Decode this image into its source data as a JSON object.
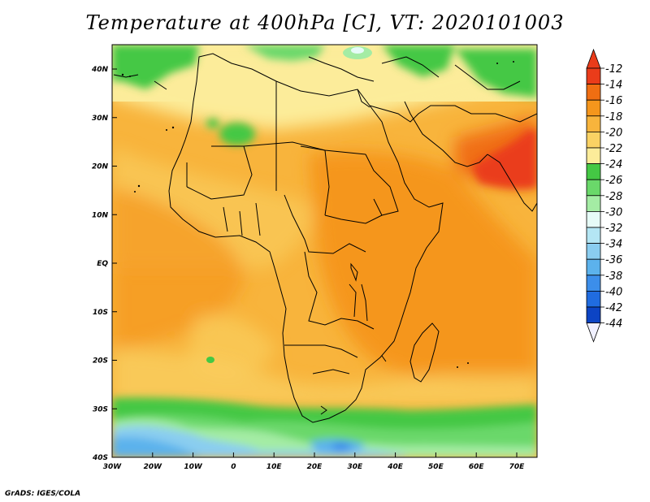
{
  "title": "Temperature at 400hPa [C], VT: 2020101003",
  "credit": "GrADS: IGES/COLA",
  "map": {
    "lon_ticks": [
      "30W",
      "20W",
      "10W",
      "0",
      "10E",
      "20E",
      "30E",
      "40E",
      "50E",
      "60E",
      "70E"
    ],
    "lat_ticks": [
      "40N",
      "30N",
      "20N",
      "10N",
      "EQ",
      "10S",
      "20S",
      "30S",
      "40S"
    ]
  },
  "colorbar": {
    "labels": [
      "-12",
      "-14",
      "-16",
      "-18",
      "-20",
      "-22",
      "-24",
      "-26",
      "-28",
      "-30",
      "-32",
      "-34",
      "-36",
      "-38",
      "-40",
      "-42",
      "-44"
    ],
    "colors": [
      "#ea3c1a",
      "#f06e12",
      "#f5961c",
      "#f8b43c",
      "#fad264",
      "#fcec9a",
      "#44c844",
      "#6ad86a",
      "#a4eca4",
      "#e6fbf7",
      "#b4e6f4",
      "#8acdf0",
      "#5cb2ec",
      "#3c8eea",
      "#206ce0",
      "#0c44c4",
      "#0a1a78"
    ]
  }
}
